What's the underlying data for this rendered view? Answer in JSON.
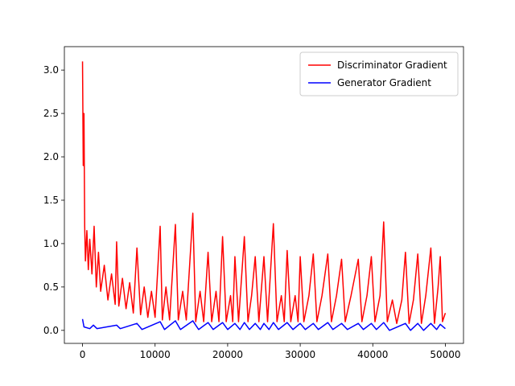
{
  "chart_data": {
    "type": "line",
    "xlim": [
      -2500,
      52500
    ],
    "ylim": [
      -0.15,
      3.27
    ],
    "xticks": [
      0,
      10000,
      20000,
      30000,
      40000,
      50000
    ],
    "yticks": [
      {
        "value": 0,
        "label": "0.0"
      },
      {
        "value": 0.5,
        "label": "0.5"
      },
      {
        "value": 1,
        "label": "1.0"
      },
      {
        "value": 1.5,
        "label": "1.5"
      },
      {
        "value": 2,
        "label": "2.0"
      },
      {
        "value": 2.5,
        "label": "2.5"
      },
      {
        "value": 3,
        "label": "3.0"
      }
    ],
    "legend": "upper right",
    "series": [
      {
        "name": "Discriminator Gradient",
        "color": "#ff0000",
        "x": [
          0,
          100,
          200,
          300,
          400,
          600,
          800,
          1000,
          1300,
          1600,
          1900,
          2200,
          2500,
          3000,
          3500,
          4000,
          4500,
          4700,
          5000,
          5500,
          6000,
          6500,
          7000,
          7500,
          8000,
          8500,
          9000,
          9500,
          10000,
          10700,
          11000,
          11500,
          12000,
          12800,
          13200,
          13800,
          14300,
          15200,
          15600,
          16200,
          16700,
          17300,
          17800,
          18400,
          18800,
          19300,
          19800,
          20400,
          20700,
          21000,
          21500,
          22300,
          22800,
          23300,
          23800,
          24300,
          25000,
          25500,
          26300,
          26800,
          27400,
          27800,
          28200,
          28700,
          29300,
          29700,
          30000,
          30500,
          31200,
          31800,
          32300,
          33000,
          33800,
          34300,
          35000,
          35700,
          36200,
          37000,
          38000,
          38500,
          39200,
          39800,
          40300,
          41000,
          41500,
          42000,
          42700,
          43300,
          44000,
          44500,
          45000,
          45600,
          46200,
          46700,
          47300,
          48000,
          48500,
          49000,
          49300,
          49600,
          50000
        ],
        "values": [
          3.1,
          1.9,
          2.5,
          1.2,
          0.8,
          1.15,
          0.7,
          1.05,
          0.65,
          1.2,
          0.5,
          0.9,
          0.45,
          0.75,
          0.35,
          0.65,
          0.3,
          1.02,
          0.28,
          0.6,
          0.25,
          0.55,
          0.2,
          0.95,
          0.18,
          0.5,
          0.15,
          0.45,
          0.15,
          1.2,
          0.12,
          0.5,
          0.12,
          1.22,
          0.12,
          0.45,
          0.12,
          1.35,
          0.1,
          0.45,
          0.1,
          0.9,
          0.1,
          0.45,
          0.1,
          1.08,
          0.1,
          0.4,
          0.1,
          0.85,
          0.1,
          1.08,
          0.1,
          0.4,
          0.85,
          0.1,
          0.85,
          0.1,
          1.23,
          0.1,
          0.4,
          0.1,
          0.92,
          0.1,
          0.4,
          0.1,
          0.85,
          0.1,
          0.4,
          0.88,
          0.1,
          0.4,
          0.88,
          0.1,
          0.4,
          0.82,
          0.1,
          0.4,
          0.82,
          0.1,
          0.4,
          0.85,
          0.1,
          0.4,
          1.25,
          0.1,
          0.35,
          0.08,
          0.35,
          0.9,
          0.08,
          0.35,
          0.88,
          0.08,
          0.4,
          0.95,
          0.08,
          0.5,
          0.85,
          0.1,
          0.2
        ]
      },
      {
        "name": "Generator Gradient",
        "color": "#0000ff",
        "x": [
          0,
          200,
          1000,
          1500,
          2000,
          4700,
          5200,
          7500,
          8200,
          10700,
          11300,
          12800,
          13500,
          15200,
          16000,
          17300,
          18000,
          19300,
          20000,
          21000,
          21700,
          22300,
          23000,
          23800,
          24500,
          25000,
          25700,
          26300,
          27000,
          28200,
          29000,
          30000,
          30700,
          31800,
          32500,
          33800,
          34500,
          35700,
          36500,
          38000,
          38700,
          39800,
          40500,
          41500,
          42300,
          44500,
          45200,
          46200,
          47000,
          48000,
          48800,
          49300,
          50000
        ],
        "values": [
          0.13,
          0.04,
          0.02,
          0.06,
          0.02,
          0.06,
          0.02,
          0.08,
          0.01,
          0.1,
          0.01,
          0.11,
          0.01,
          0.11,
          0.01,
          0.09,
          0.01,
          0.09,
          0.01,
          0.08,
          0.01,
          0.09,
          0.01,
          0.08,
          0.01,
          0.08,
          0.01,
          0.09,
          0.01,
          0.09,
          0.01,
          0.08,
          0.01,
          0.08,
          0.01,
          0.09,
          0.01,
          0.08,
          0.01,
          0.08,
          0.01,
          0.08,
          0.01,
          0.09,
          0.0,
          0.08,
          0.0,
          0.08,
          0.0,
          0.08,
          0.01,
          0.07,
          0.02
        ]
      }
    ]
  }
}
